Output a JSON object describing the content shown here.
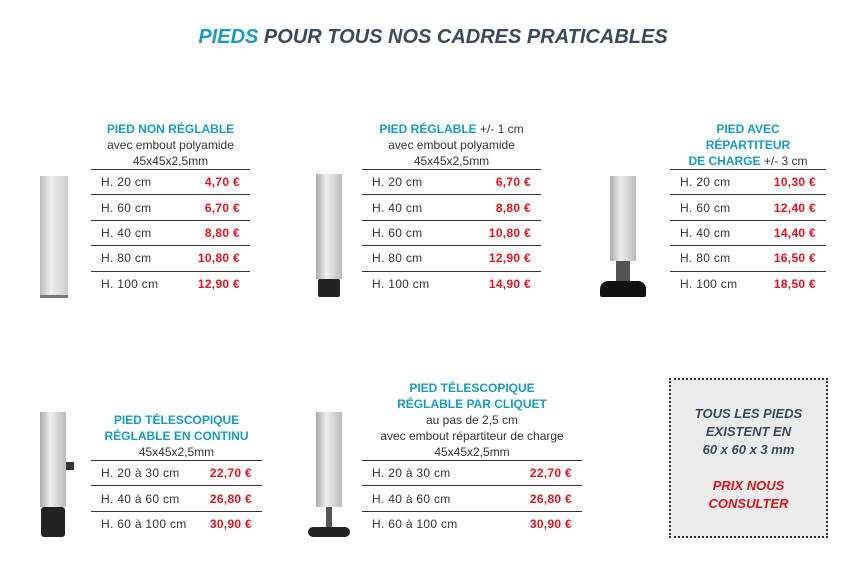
{
  "title": {
    "accent": "PIEDS",
    "rest": " POUR TOUS NOS CADRES PRATICABLES"
  },
  "products": [
    {
      "name": "PIED NON RÉGLABLE",
      "suffix": "",
      "lines": [
        "avec embout polyamide",
        "45x45x2,5mm"
      ],
      "rows": [
        [
          "H. 20 cm",
          "4,70 €"
        ],
        [
          "H. 60 cm",
          "6,70 €"
        ],
        [
          "H. 40 cm",
          "8,80 €"
        ],
        [
          "H. 80 cm",
          "10,80 €"
        ],
        [
          "H. 100 cm",
          "12,90 €"
        ]
      ]
    },
    {
      "name": "PIED RÉGLABLE",
      "suffix": " +/- 1 cm",
      "lines": [
        "avec embout polyamide",
        "45x45x2,5mm"
      ],
      "rows": [
        [
          "H. 20 cm",
          "6,70 €"
        ],
        [
          "H. 40 cm",
          "8,80 €"
        ],
        [
          "H.  60 cm",
          "10,80 €"
        ],
        [
          "H. 80 cm",
          "12,90 €"
        ],
        [
          "H. 100 cm",
          "14,90 €"
        ]
      ]
    },
    {
      "name1": "PIED AVEC",
      "name2": "RÉPARTITEUR",
      "name3": "DE CHARGE",
      "suffix": " +/- 3 cm",
      "rows": [
        [
          "H. 20 cm",
          "10,30 €"
        ],
        [
          "H. 60 cm",
          "12,40 €"
        ],
        [
          "H. 40 cm",
          "14,40 €"
        ],
        [
          "H. 80 cm",
          "16,50 €"
        ],
        [
          "H. 100 cm",
          "18,50 €"
        ]
      ]
    },
    {
      "name1": "PIED TÉLESCOPIQUE",
      "name2": "RÉGLABLE EN CONTINU",
      "lines": [
        "45x45x2,5mm"
      ],
      "rows": [
        [
          "H. 20 à 30 cm",
          "22,70 €"
        ],
        [
          "H. 40 à 60 cm",
          "26,80 €"
        ],
        [
          "H. 60 à 100 cm",
          "30,90 €"
        ]
      ]
    },
    {
      "name1": "PIED TÉLESCOPIQUE",
      "name2": "RÉGLABLE PAR CLIQUET",
      "lines": [
        "au pas de 2,5 cm",
        "avec embout répartiteur de charge",
        "45x45x2,5mm"
      ],
      "rows": [
        [
          "H. 20 à 30 cm",
          "22,70 €"
        ],
        [
          "H. 40 à 60 cm",
          "26,80 €"
        ],
        [
          "H. 60 à 100 cm",
          "30,90 €"
        ]
      ]
    }
  ],
  "note": {
    "l1": "TOUS LES PIEDS",
    "l2": "EXISTENT EN",
    "l3": "60 x 60 x 3 mm",
    "r1": "PRIX NOUS",
    "r2": "CONSULTER"
  }
}
